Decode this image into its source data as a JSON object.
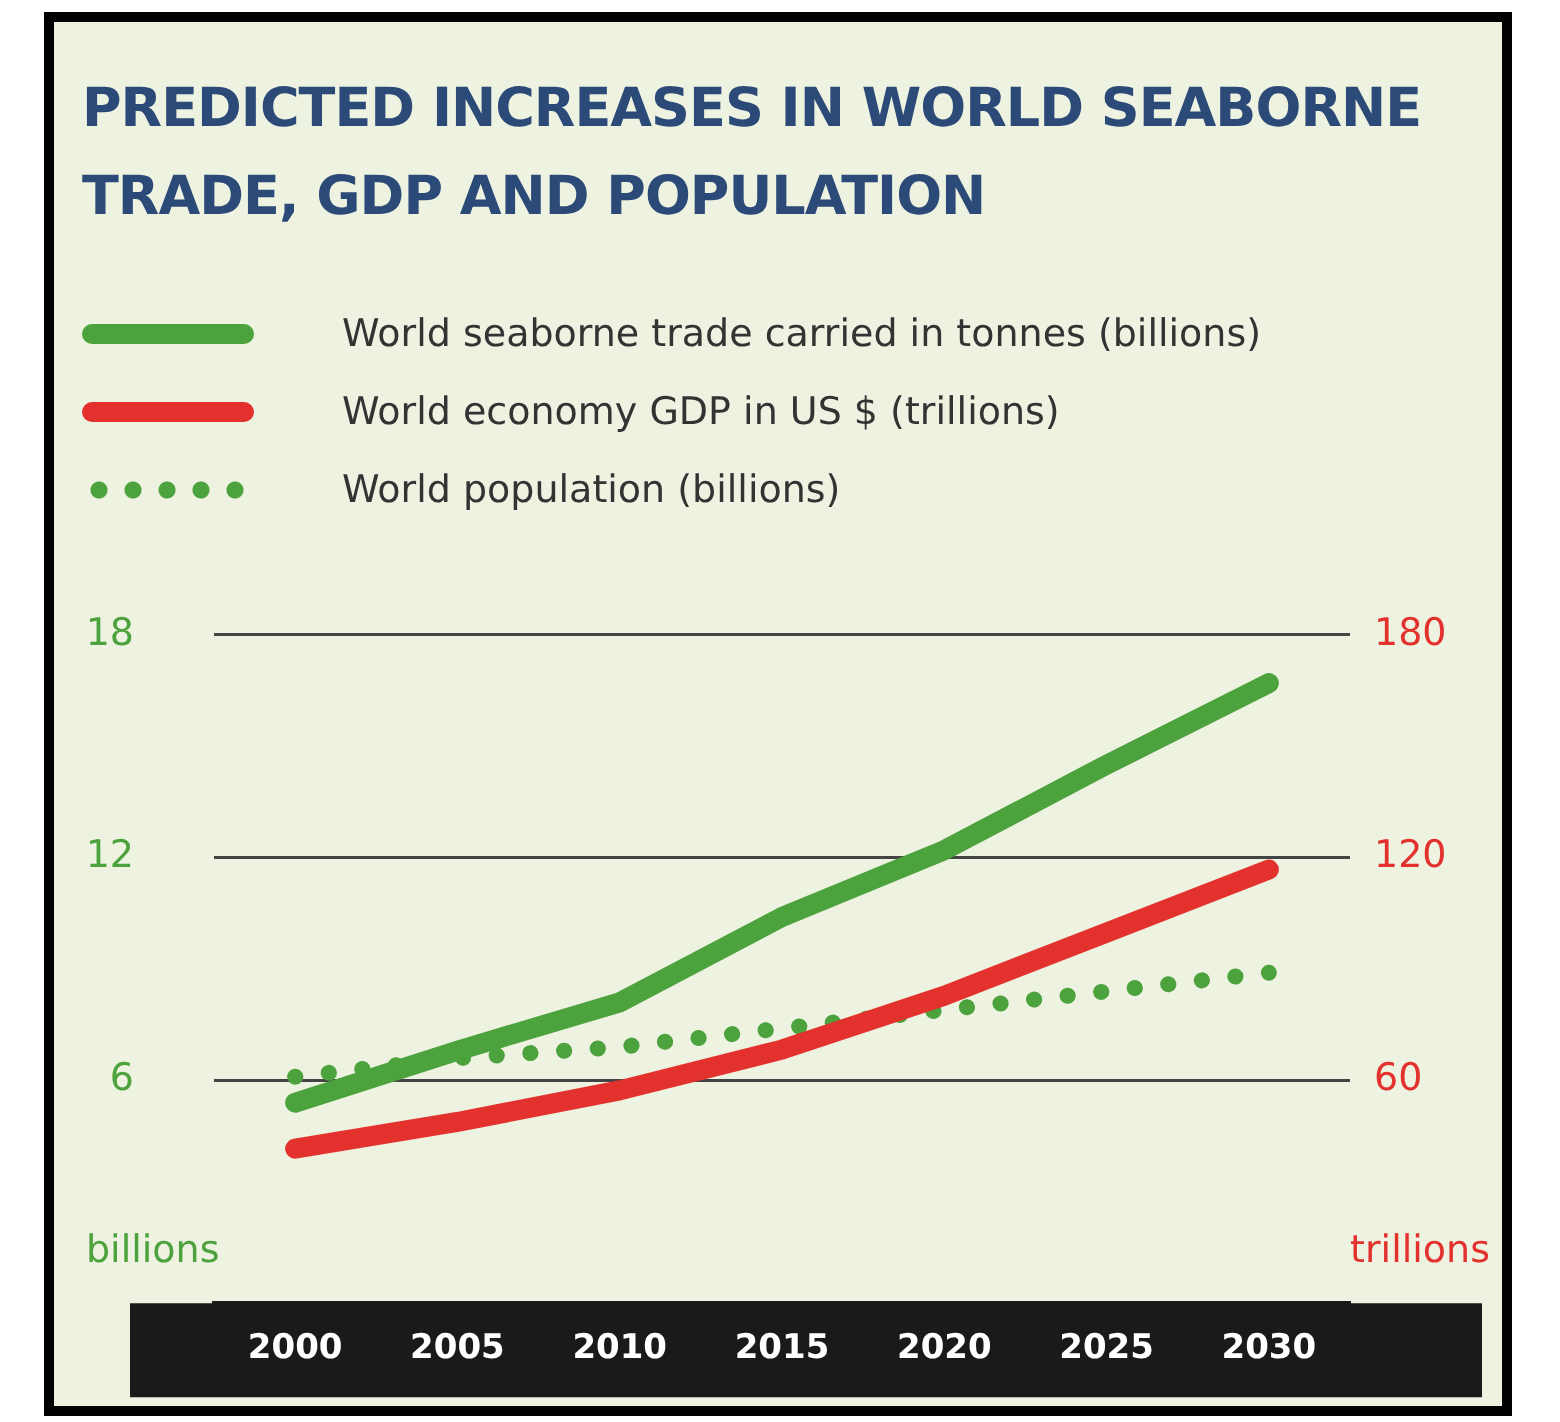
{
  "chart_data": {
    "type": "line",
    "title": "PREDICTED INCREASES IN WORLD SEABORNE TRADE, GDP AND POPULATION",
    "ylabel": "billions",
    "y2label": "trillions",
    "categories": [
      "2000",
      "2005",
      "2010",
      "2015",
      "2020",
      "2025",
      "2030"
    ],
    "series": [
      {
        "name": "World seaborne trade carried in tonnes (billions)",
        "color": "#4ca23c",
        "values": [
          5.4,
          6.8,
          8.1,
          10.4,
          12.2,
          14.5,
          16.7
        ]
      },
      {
        "name": "World economy GDP in US $ (trillions)",
        "color": "#e3322d",
        "axis": "y2",
        "values": [
          41.6,
          48.8,
          57.3,
          68.3,
          82.8,
          99.8,
          116.8
        ]
      },
      {
        "name": "World population (billions)",
        "color": "#4ca23c",
        "line_style": "dotted",
        "values": [
          6.1,
          6.6,
          6.9,
          7.4,
          7.9,
          8.4,
          8.9
        ]
      }
    ],
    "ylim": [
      0,
      18
    ],
    "yticks": [
      6,
      12,
      18
    ],
    "y2lim": [
      0,
      180
    ],
    "y2ticks": [
      60,
      120,
      180
    ],
    "grid": "y",
    "legend": "top"
  }
}
